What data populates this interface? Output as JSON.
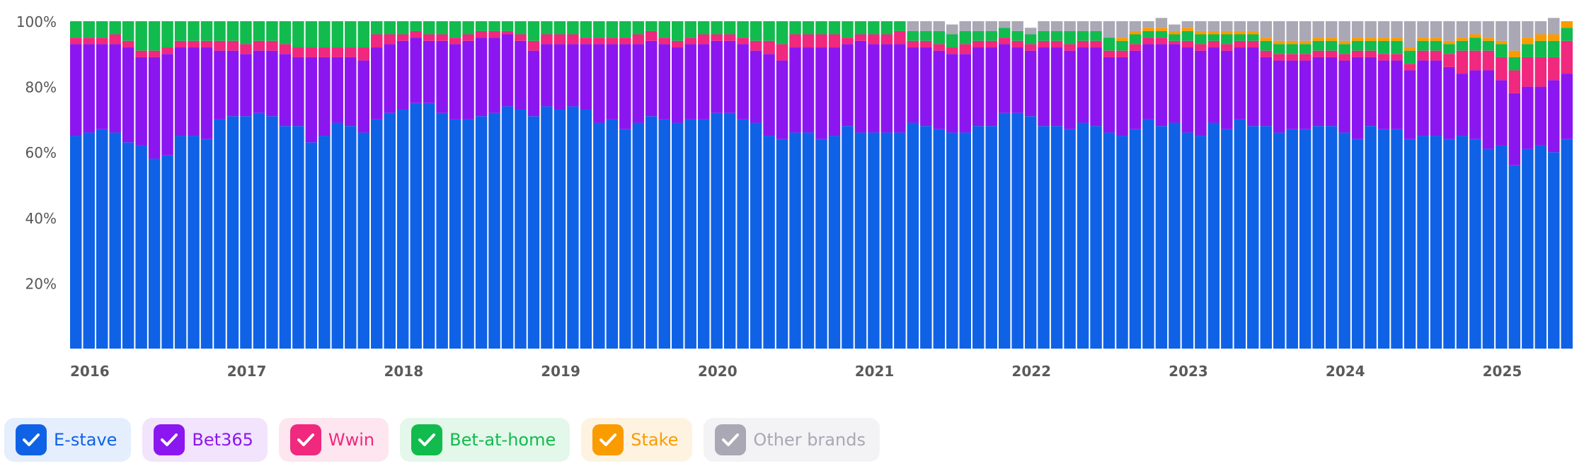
{
  "chart_data": {
    "type": "bar",
    "stacked": true,
    "y_ticks": [
      "20%",
      "40%",
      "60%",
      "80%",
      "100%"
    ],
    "ylim": [
      0,
      100
    ],
    "x_ticks": [
      {
        "label": "2016",
        "month": 0
      },
      {
        "label": "2017",
        "month": 12
      },
      {
        "label": "2018",
        "month": 24
      },
      {
        "label": "2019",
        "month": 36
      },
      {
        "label": "2020",
        "month": 48
      },
      {
        "label": "2021",
        "month": 60
      },
      {
        "label": "2022",
        "month": 72
      },
      {
        "label": "2023",
        "month": 84
      },
      {
        "label": "2024",
        "month": 96
      },
      {
        "label": "2025",
        "month": 108
      }
    ],
    "series": [
      {
        "name": "E-stave",
        "color": "#0f62e6",
        "values": [
          65,
          66,
          67,
          66,
          63,
          62,
          58,
          59,
          65,
          65,
          64,
          70,
          71,
          71,
          72,
          71,
          68,
          68,
          63,
          65,
          69,
          68,
          66,
          70,
          72,
          73,
          75,
          75,
          72,
          70,
          70,
          71,
          72,
          74,
          73,
          71,
          74,
          73,
          74,
          73,
          69,
          70,
          67,
          69,
          71,
          70,
          69,
          70,
          70,
          72,
          72,
          70,
          69,
          65,
          64,
          66,
          66,
          64,
          65,
          68,
          66,
          66,
          66,
          66,
          69,
          68,
          67,
          66,
          66,
          68,
          68,
          72,
          72,
          71,
          68,
          68,
          67,
          69,
          68,
          66,
          65,
          67,
          70,
          68,
          69,
          66,
          65,
          69,
          67,
          70,
          68,
          68,
          66,
          67,
          67,
          68,
          68,
          66,
          64,
          68,
          67,
          67,
          64,
          65,
          65,
          64,
          65,
          64,
          61,
          62,
          56,
          61,
          62,
          60,
          64
        ]
      },
      {
        "name": "Bet365",
        "color": "#8c16f0",
        "values": [
          28,
          27,
          26,
          27,
          29,
          27,
          31,
          31,
          27,
          27,
          28,
          21,
          20,
          19,
          19,
          20,
          22,
          21,
          26,
          24,
          20,
          21,
          22,
          22,
          21,
          21,
          20,
          19,
          22,
          23,
          24,
          24,
          23,
          22,
          21,
          20,
          19,
          20,
          19,
          20,
          24,
          23,
          26,
          24,
          23,
          23,
          23,
          23,
          23,
          22,
          22,
          23,
          22,
          25,
          24,
          26,
          26,
          28,
          27,
          25,
          28,
          27,
          27,
          27,
          23,
          24,
          24,
          24,
          24,
          24,
          24,
          21,
          20,
          20,
          24,
          24,
          24,
          23,
          24,
          23,
          24,
          24,
          23,
          25,
          24,
          26,
          26,
          23,
          24,
          22,
          24,
          21,
          22,
          21,
          21,
          21,
          21,
          22,
          25,
          21,
          21,
          21,
          21,
          23,
          23,
          22,
          19,
          21,
          24,
          20,
          22,
          19,
          18,
          22,
          20
        ]
      },
      {
        "name": "Wwin",
        "color": "#f0287e",
        "values": [
          2,
          2,
          2,
          3,
          2,
          2,
          2,
          2,
          2,
          2,
          2,
          3,
          3,
          3,
          3,
          3,
          3,
          3,
          3,
          3,
          3,
          3,
          4,
          4,
          3,
          2,
          2,
          2,
          2,
          2,
          2,
          2,
          2,
          1,
          2,
          3,
          3,
          3,
          3,
          2,
          2,
          2,
          2,
          3,
          3,
          2,
          2,
          2,
          3,
          2,
          2,
          2,
          3,
          4,
          5,
          4,
          4,
          4,
          4,
          2,
          2,
          3,
          3,
          4,
          2,
          2,
          2,
          2,
          3,
          2,
          2,
          2,
          2,
          2,
          2,
          2,
          2,
          2,
          2,
          2,
          2,
          2,
          2,
          2,
          1,
          2,
          2,
          2,
          2,
          2,
          2,
          2,
          2,
          2,
          2,
          2,
          2,
          2,
          2,
          2,
          2,
          2,
          2,
          3,
          3,
          4,
          7,
          6,
          6,
          7,
          7,
          9,
          9,
          7,
          10
        ]
      },
      {
        "name": "Bet-at-home",
        "color": "#12bb4d",
        "values": [
          5,
          5,
          5,
          4,
          6,
          9,
          9,
          8,
          6,
          6,
          6,
          6,
          6,
          7,
          6,
          6,
          7,
          8,
          8,
          8,
          8,
          8,
          8,
          4,
          4,
          4,
          3,
          4,
          4,
          5,
          4,
          3,
          3,
          3,
          4,
          6,
          4,
          4,
          4,
          5,
          5,
          5,
          5,
          4,
          3,
          5,
          6,
          5,
          4,
          4,
          4,
          5,
          6,
          6,
          7,
          4,
          4,
          4,
          4,
          5,
          4,
          4,
          4,
          3,
          3,
          3,
          4,
          4,
          4,
          3,
          3,
          3,
          3,
          3,
          3,
          3,
          4,
          3,
          3,
          4,
          3,
          3,
          2,
          2,
          2,
          3,
          3,
          2,
          3,
          2,
          2,
          3,
          3,
          3,
          3,
          3,
          3,
          3,
          3,
          3,
          4,
          4,
          4,
          3,
          3,
          3,
          3,
          4,
          3,
          4,
          4,
          4,
          5,
          5,
          4
        ]
      },
      {
        "name": "Stake",
        "color": "#fa9b00",
        "values": [
          0,
          0,
          0,
          0,
          0,
          0,
          0,
          0,
          0,
          0,
          0,
          0,
          0,
          0,
          0,
          0,
          0,
          0,
          0,
          0,
          0,
          0,
          0,
          0,
          0,
          0,
          0,
          0,
          0,
          0,
          0,
          0,
          0,
          0,
          0,
          0,
          0,
          0,
          0,
          0,
          0,
          0,
          0,
          0,
          0,
          0,
          0,
          0,
          0,
          0,
          0,
          0,
          0,
          0,
          0,
          0,
          0,
          0,
          0,
          0,
          0,
          0,
          0,
          0,
          0,
          0,
          0,
          0,
          0,
          0,
          0,
          0,
          0,
          0,
          0,
          0,
          0,
          0,
          0,
          0,
          1,
          1,
          1,
          1,
          1,
          1,
          1,
          1,
          1,
          1,
          1,
          1,
          1,
          1,
          1,
          1,
          1,
          1,
          1,
          1,
          1,
          1,
          1,
          1,
          1,
          1,
          1,
          1,
          1,
          1,
          2,
          2,
          2,
          2,
          2
        ]
      },
      {
        "name": "Other brands",
        "color": "#a9a8b4",
        "values": [
          0,
          0,
          0,
          0,
          0,
          0,
          0,
          0,
          0,
          0,
          0,
          0,
          0,
          0,
          0,
          0,
          0,
          0,
          0,
          0,
          0,
          0,
          0,
          0,
          0,
          0,
          0,
          0,
          0,
          0,
          0,
          0,
          0,
          0,
          0,
          0,
          0,
          0,
          0,
          0,
          0,
          0,
          0,
          0,
          0,
          0,
          0,
          0,
          0,
          0,
          0,
          0,
          0,
          0,
          0,
          0,
          0,
          0,
          0,
          0,
          0,
          0,
          0,
          0,
          3,
          3,
          3,
          3,
          3,
          3,
          3,
          2,
          3,
          2,
          3,
          3,
          3,
          3,
          3,
          5,
          5,
          3,
          2,
          3,
          2,
          2,
          3,
          3,
          3,
          3,
          3,
          5,
          6,
          6,
          6,
          5,
          5,
          6,
          5,
          5,
          5,
          5,
          8,
          5,
          5,
          6,
          5,
          4,
          5,
          6,
          9,
          5,
          4,
          5,
          0
        ]
      }
    ]
  },
  "legend": [
    {
      "label": "E-stave",
      "color": "#0f62e6",
      "bg": "#e4eefc"
    },
    {
      "label": "Bet365",
      "color": "#8c16f0",
      "bg": "#f1e4fc"
    },
    {
      "label": "Wwin",
      "color": "#f0287e",
      "bg": "#fde6ef"
    },
    {
      "label": "Bet-at-home",
      "color": "#12bb4d",
      "bg": "#e3f7ea"
    },
    {
      "label": "Stake",
      "color": "#fa9b00",
      "bg": "#fef3e1"
    },
    {
      "label": "Other brands",
      "color": "#a9a8b4",
      "bg": "#f3f3f5"
    }
  ]
}
